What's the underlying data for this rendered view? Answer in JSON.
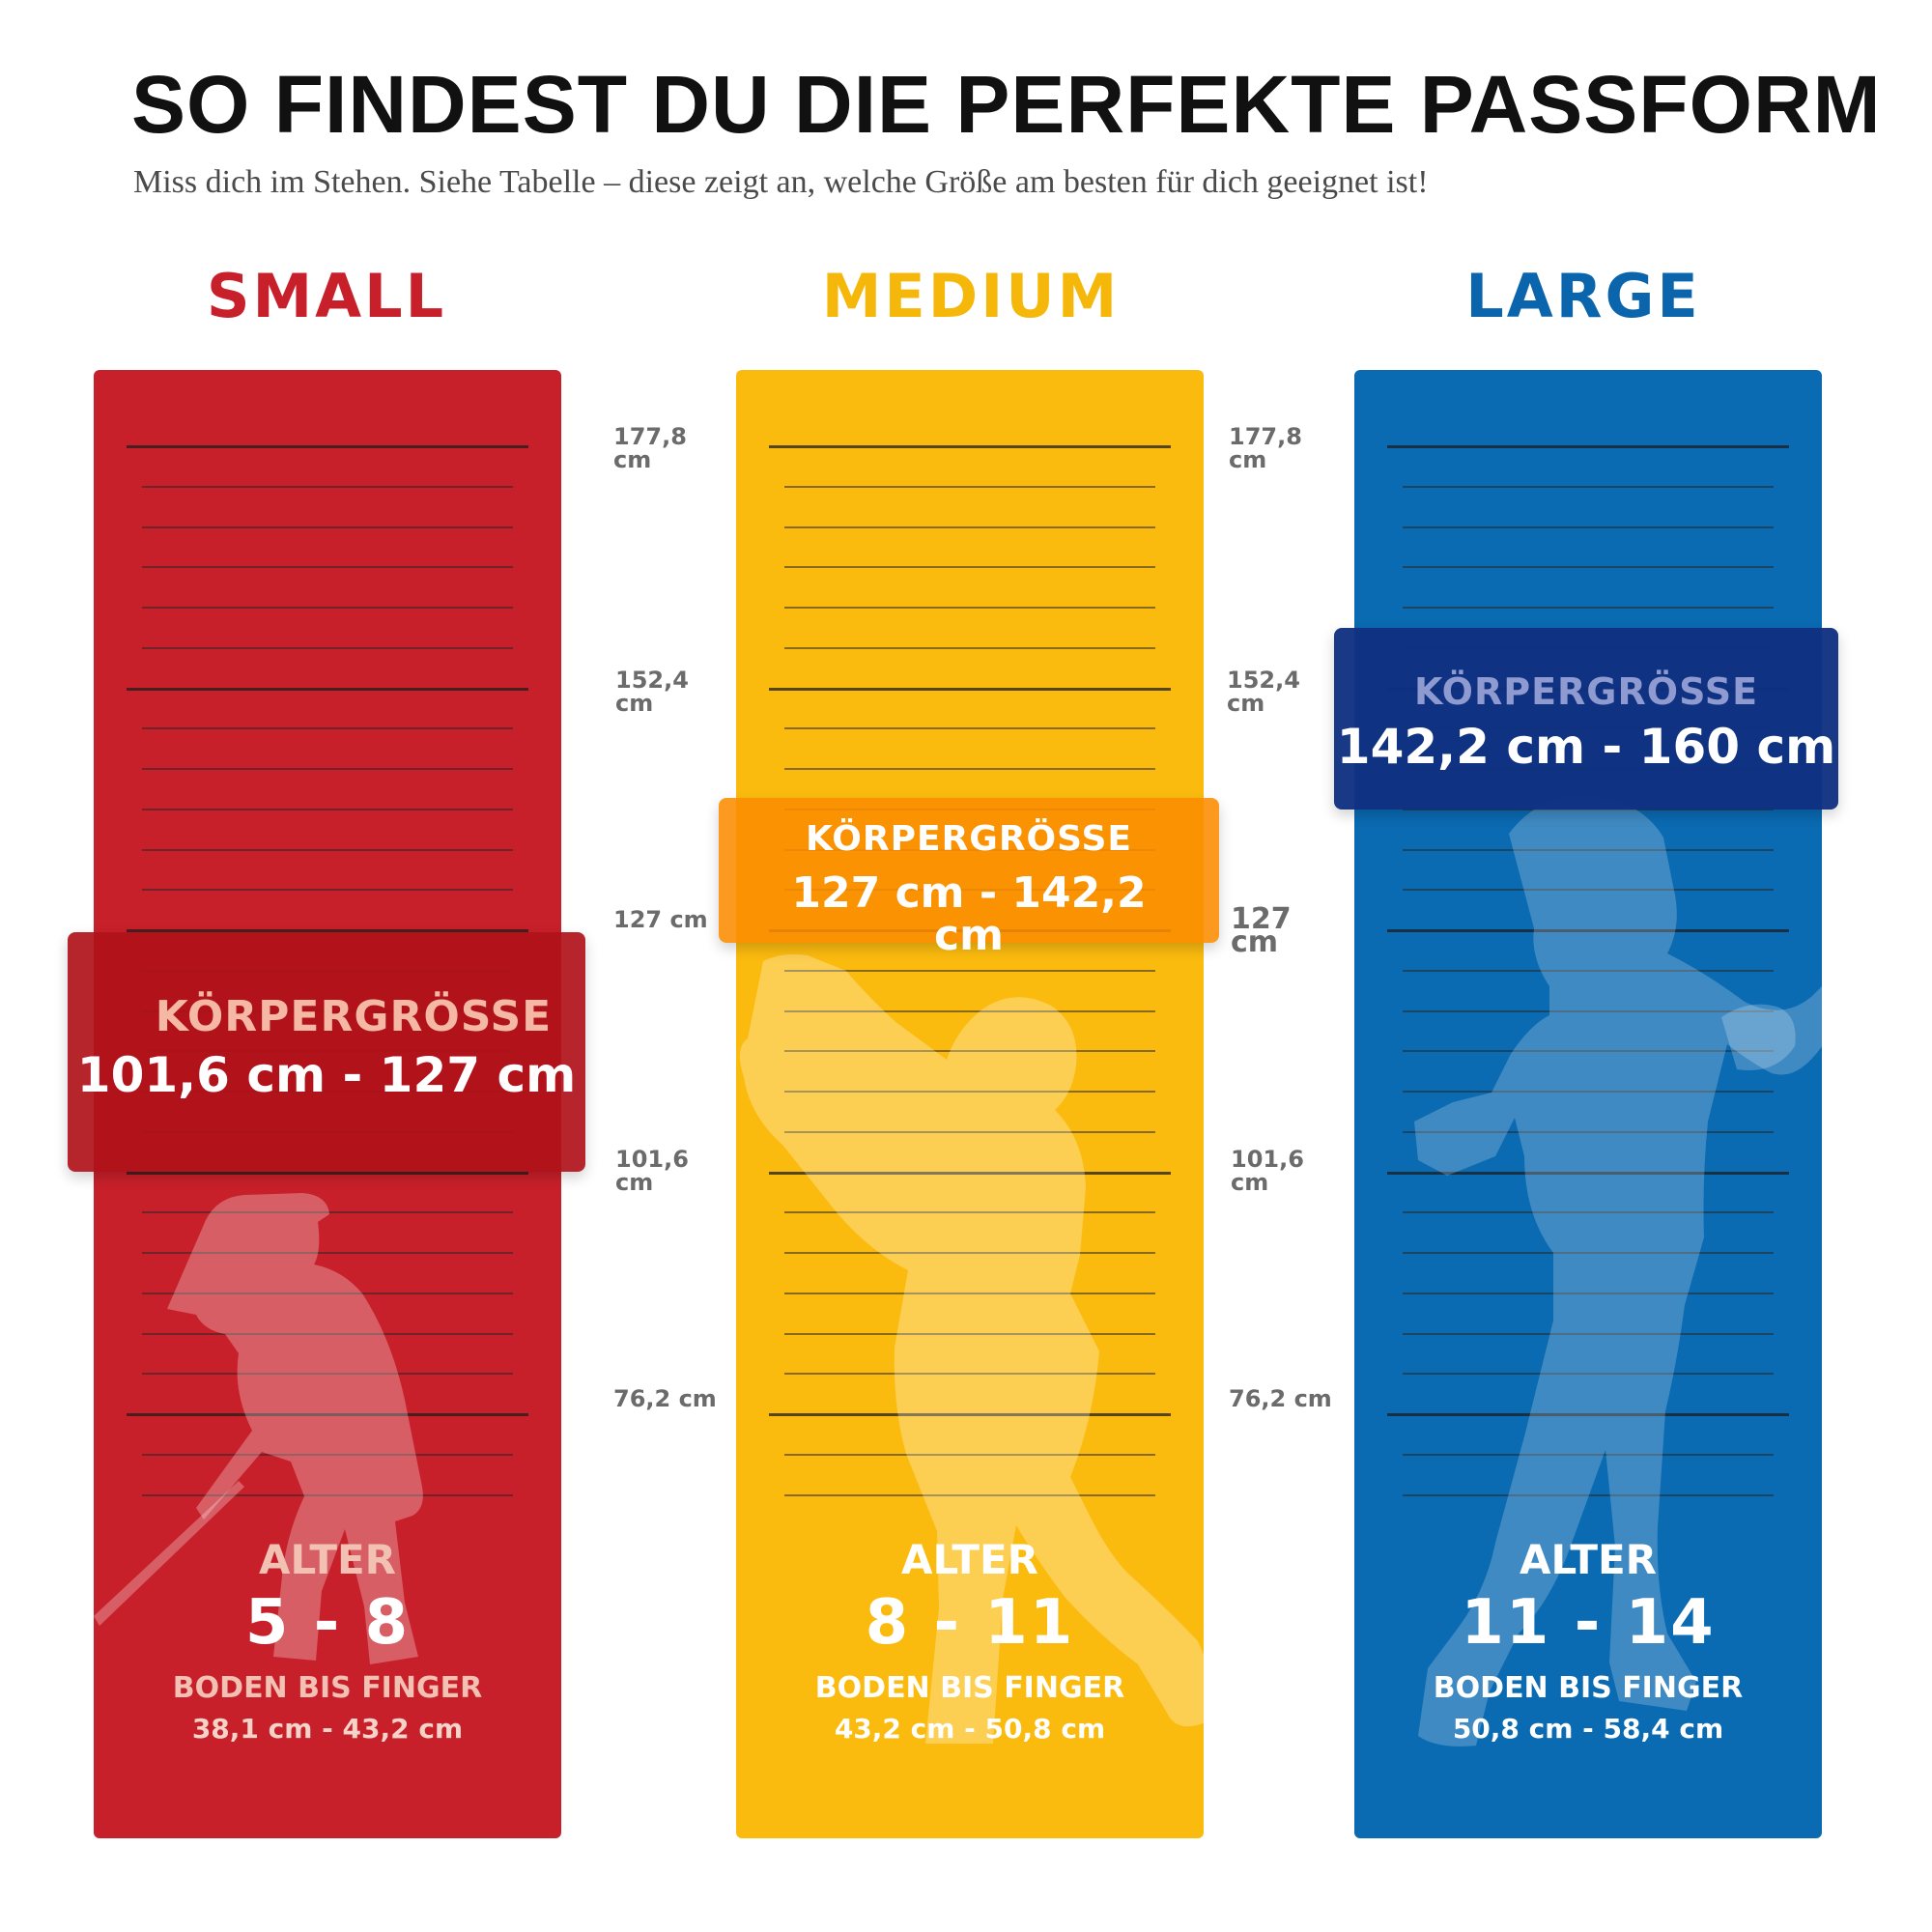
{
  "header": {
    "title": "SO FINDEST DU DIE PERFEKTE PASSFORM",
    "subtitle": "Miss dich im Stehen. Siehe Tabelle – diese zeigt an, welche Größe am besten für dich geeignet ist!"
  },
  "scales": {
    "left": [
      "177,8 cm",
      "152,4 cm",
      "127 cm",
      "101,6 cm",
      "76,2 cm"
    ],
    "right": [
      "177,8 cm",
      "152,4 cm",
      "127 cm",
      "101,6 cm",
      "76,2 cm"
    ]
  },
  "sizes": [
    {
      "name": "SMALL",
      "color": "#c8202a",
      "band_label": "KÖRPERGRÖSSE",
      "band_value": "101,6 cm - 127 cm",
      "age_label": "ALTER",
      "age_value": "5 - 8",
      "reach_label": "BODEN BIS FINGER",
      "reach_value": "38,1 cm - 43,2 cm",
      "silhouette_icon": "child-golfer-putting-icon"
    },
    {
      "name": "MEDIUM",
      "color": "#fbbb0e",
      "band_label": "KÖRPERGRÖSSE",
      "band_value": "127 cm - 142,2 cm",
      "age_label": "ALTER",
      "age_value": "8 - 11",
      "reach_label": "BODEN BIS FINGER",
      "reach_value": "43,2 cm - 50,8 cm",
      "silhouette_icon": "child-golfer-swing-icon"
    },
    {
      "name": "LARGE",
      "color": "#0a6ab2",
      "band_label": "KÖRPERGRÖSSE",
      "band_value": "142,2 cm - 160 cm",
      "age_label": "ALTER",
      "age_value": "11 - 14",
      "reach_label": "BODEN BIS FINGER",
      "reach_value": "50,8 cm - 58,4 cm",
      "silhouette_icon": "teen-golfer-finish-icon"
    }
  ]
}
